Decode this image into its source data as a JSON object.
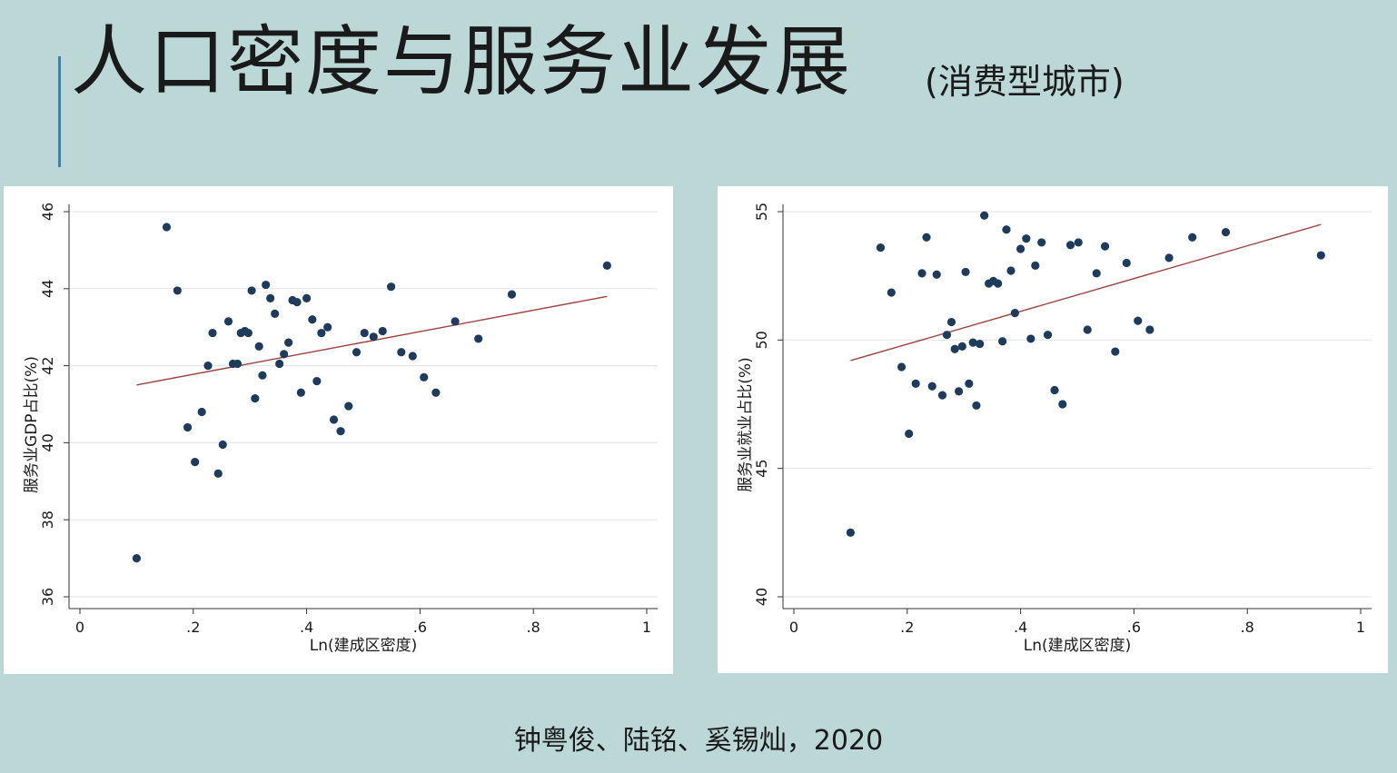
{
  "header": {
    "title": "人口密度与服务业发展",
    "subtitle": "(消费型城市)"
  },
  "footer": {
    "citation": "钟粤俊、陆铭、奚锡灿，2020"
  },
  "colors": {
    "background": "#bcd8d6",
    "point": "#1f3b5c",
    "fit_line": "#a0403c",
    "accent": "#3f7fb5",
    "grid": "#e6e6e6"
  },
  "chart_data": [
    {
      "type": "scatter",
      "title": "",
      "xlabel": "Ln(建成区密度)",
      "ylabel": "服务业GDP占比(%)",
      "xlim": [
        0,
        1
      ],
      "ylim": [
        36,
        46
      ],
      "xticks": [
        0,
        0.2,
        0.4,
        0.6,
        0.8,
        1
      ],
      "xtick_labels": [
        "0",
        ".2",
        ".4",
        ".6",
        ".8",
        "1"
      ],
      "yticks": [
        36,
        38,
        40,
        42,
        44,
        46
      ],
      "ytick_labels": [
        "36",
        "38",
        "40",
        "42",
        "44",
        "46"
      ],
      "grid": true,
      "fit_line": {
        "x": [
          0.1,
          0.93
        ],
        "y": [
          41.5,
          43.8
        ]
      },
      "points": [
        [
          0.1,
          37.0
        ],
        [
          0.153,
          45.6
        ],
        [
          0.172,
          43.95
        ],
        [
          0.19,
          40.4
        ],
        [
          0.203,
          39.5
        ],
        [
          0.215,
          40.8
        ],
        [
          0.226,
          42.0
        ],
        [
          0.234,
          42.85
        ],
        [
          0.244,
          39.2
        ],
        [
          0.252,
          39.95
        ],
        [
          0.262,
          43.15
        ],
        [
          0.27,
          42.05
        ],
        [
          0.278,
          42.05
        ],
        [
          0.284,
          42.85
        ],
        [
          0.291,
          42.9
        ],
        [
          0.297,
          42.85
        ],
        [
          0.303,
          43.95
        ],
        [
          0.309,
          41.15
        ],
        [
          0.316,
          42.5
        ],
        [
          0.322,
          41.75
        ],
        [
          0.328,
          44.1
        ],
        [
          0.336,
          43.75
        ],
        [
          0.344,
          43.35
        ],
        [
          0.352,
          42.05
        ],
        [
          0.36,
          42.3
        ],
        [
          0.368,
          42.6
        ],
        [
          0.375,
          43.7
        ],
        [
          0.383,
          43.65
        ],
        [
          0.39,
          41.3
        ],
        [
          0.4,
          43.75
        ],
        [
          0.41,
          43.2
        ],
        [
          0.418,
          41.6
        ],
        [
          0.426,
          42.85
        ],
        [
          0.437,
          43.0
        ],
        [
          0.448,
          40.6
        ],
        [
          0.46,
          40.3
        ],
        [
          0.474,
          40.95
        ],
        [
          0.488,
          42.35
        ],
        [
          0.502,
          42.85
        ],
        [
          0.518,
          42.75
        ],
        [
          0.534,
          42.9
        ],
        [
          0.549,
          44.05
        ],
        [
          0.567,
          42.35
        ],
        [
          0.587,
          42.25
        ],
        [
          0.607,
          41.7
        ],
        [
          0.628,
          41.3
        ],
        [
          0.662,
          43.15
        ],
        [
          0.703,
          42.7
        ],
        [
          0.762,
          43.85
        ],
        [
          0.93,
          44.6
        ]
      ]
    },
    {
      "type": "scatter",
      "title": "",
      "xlabel": "Ln(建成区密度)",
      "ylabel": "服务业就业占比(%)",
      "xlim": [
        0,
        1
      ],
      "ylim": [
        40,
        55
      ],
      "xticks": [
        0,
        0.2,
        0.4,
        0.6,
        0.8,
        1
      ],
      "xtick_labels": [
        "0",
        ".2",
        ".4",
        ".6",
        ".8",
        "1"
      ],
      "yticks": [
        40,
        45,
        50,
        55
      ],
      "ytick_labels": [
        "40",
        "45",
        "50",
        "55"
      ],
      "grid": true,
      "fit_line": {
        "x": [
          0.1,
          0.93
        ],
        "y": [
          49.2,
          54.5
        ]
      },
      "points": [
        [
          0.1,
          42.5
        ],
        [
          0.153,
          53.6
        ],
        [
          0.172,
          51.85
        ],
        [
          0.19,
          48.95
        ],
        [
          0.203,
          46.35
        ],
        [
          0.215,
          48.3
        ],
        [
          0.226,
          52.6
        ],
        [
          0.234,
          54.0
        ],
        [
          0.244,
          48.2
        ],
        [
          0.252,
          52.55
        ],
        [
          0.262,
          47.85
        ],
        [
          0.27,
          50.2
        ],
        [
          0.278,
          50.7
        ],
        [
          0.284,
          49.65
        ],
        [
          0.291,
          48.0
        ],
        [
          0.297,
          49.75
        ],
        [
          0.303,
          52.65
        ],
        [
          0.309,
          48.3
        ],
        [
          0.316,
          49.9
        ],
        [
          0.322,
          47.45
        ],
        [
          0.328,
          49.85
        ],
        [
          0.336,
          54.85
        ],
        [
          0.344,
          52.2
        ],
        [
          0.352,
          52.3
        ],
        [
          0.36,
          52.2
        ],
        [
          0.368,
          49.95
        ],
        [
          0.375,
          54.3
        ],
        [
          0.383,
          52.7
        ],
        [
          0.39,
          51.05
        ],
        [
          0.4,
          53.55
        ],
        [
          0.41,
          53.95
        ],
        [
          0.418,
          50.05
        ],
        [
          0.426,
          52.9
        ],
        [
          0.437,
          53.8
        ],
        [
          0.448,
          50.2
        ],
        [
          0.46,
          48.05
        ],
        [
          0.474,
          47.5
        ],
        [
          0.488,
          53.7
        ],
        [
          0.502,
          53.8
        ],
        [
          0.518,
          50.4
        ],
        [
          0.534,
          52.6
        ],
        [
          0.549,
          53.65
        ],
        [
          0.567,
          49.55
        ],
        [
          0.587,
          53.0
        ],
        [
          0.607,
          50.75
        ],
        [
          0.628,
          50.4
        ],
        [
          0.662,
          53.2
        ],
        [
          0.703,
          54.0
        ],
        [
          0.762,
          54.2
        ],
        [
          0.93,
          53.3
        ]
      ]
    }
  ]
}
